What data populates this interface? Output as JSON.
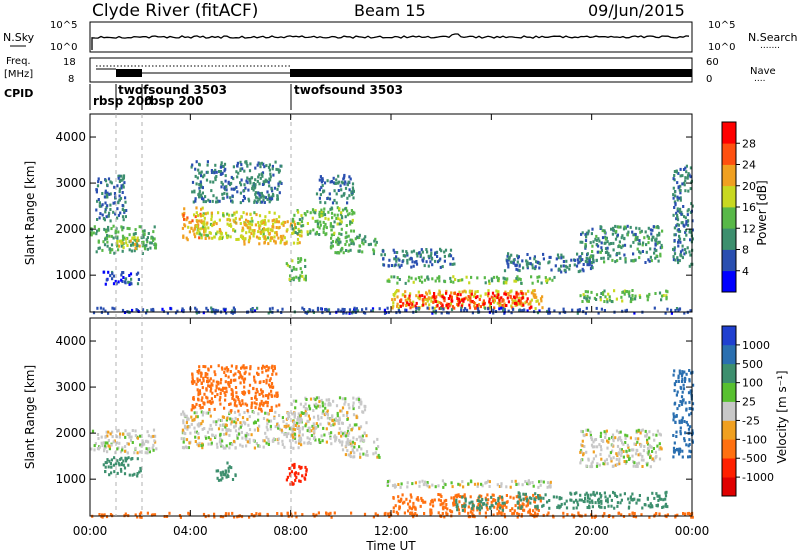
{
  "header": {
    "station": "Clyde River (fitACF)",
    "beam": "Beam 15",
    "date": "09/Jun/2015"
  },
  "nsky_panel": {
    "label": "N.Sky",
    "left_ticks": [
      "10^5",
      "10^0"
    ],
    "right_ticks": [
      "10^5",
      "10^0"
    ],
    "right_label": "N.Search",
    "right_legend": "......."
  },
  "freq_panel": {
    "label_line1": "Freq.",
    "label_line2": "[MHz]",
    "left_ticks": [
      "18",
      "8"
    ],
    "right_ticks": [
      "60",
      "0"
    ],
    "right_label": "Nave",
    "right_legend": "...."
  },
  "cpid_panel": {
    "label": "CPID",
    "programs": [
      {
        "name": "rbsp 200",
        "start_hour": 0.0
      },
      {
        "name": "twofsound 3503",
        "start_hour": 1.0
      },
      {
        "name": "rbsp 200",
        "start_hour": 2.0
      },
      {
        "name": "twofsound 3503",
        "start_hour": 8.0
      }
    ]
  },
  "chart_data": [
    {
      "type": "heatmap",
      "name": "power",
      "ylabel": "Slant Range [km]",
      "ylim": [
        200,
        4500
      ],
      "yticks": [
        "1000",
        "2000",
        "3000",
        "4000"
      ],
      "xlim": [
        0,
        24
      ],
      "colorbar": {
        "label": "Power [dB]",
        "ticks": [
          "4",
          "8",
          "12",
          "16",
          "20",
          "24",
          "28"
        ],
        "colors": [
          "#0000ff",
          "#2a4fb0",
          "#3d8f6e",
          "#58b848",
          "#c8d820",
          "#f0a020",
          "#ff5010",
          "#ff0000"
        ]
      },
      "regions": [
        {
          "t0": 0.0,
          "t1": 2.6,
          "r0": 1500,
          "r1": 2100,
          "value": 12
        },
        {
          "t0": 0.2,
          "t1": 1.4,
          "r0": 2200,
          "r1": 3200,
          "value": 8
        },
        {
          "t0": 0.5,
          "t1": 2.0,
          "r0": 800,
          "r1": 1100,
          "value": 6
        },
        {
          "t0": 1.0,
          "t1": 2.0,
          "r0": 1600,
          "r1": 1900,
          "value": 18
        },
        {
          "t0": 3.6,
          "t1": 4.6,
          "r0": 1800,
          "r1": 2500,
          "value": 22
        },
        {
          "t0": 4.2,
          "t1": 7.5,
          "r0": 1800,
          "r1": 2400,
          "value": 18
        },
        {
          "t0": 6.0,
          "t1": 8.4,
          "r0": 1700,
          "r1": 2200,
          "value": 21
        },
        {
          "t0": 4.0,
          "t1": 7.6,
          "r0": 2600,
          "r1": 3500,
          "value": 9
        },
        {
          "t0": 7.8,
          "t1": 8.6,
          "r0": 900,
          "r1": 1400,
          "value": 14
        },
        {
          "t0": 8.0,
          "t1": 10.5,
          "r0": 1900,
          "r1": 2500,
          "value": 14
        },
        {
          "t0": 9.5,
          "t1": 11.5,
          "r0": 1500,
          "r1": 1900,
          "value": 12
        },
        {
          "t0": 9.0,
          "t1": 10.5,
          "r0": 2600,
          "r1": 3200,
          "value": 8
        },
        {
          "t0": 11.5,
          "t1": 14.5,
          "r0": 1200,
          "r1": 1600,
          "value": 8
        },
        {
          "t0": 11.8,
          "t1": 18.5,
          "r0": 850,
          "r1": 1000,
          "value": 14
        },
        {
          "t0": 12.0,
          "t1": 18.0,
          "r0": 300,
          "r1": 700,
          "value": 20
        },
        {
          "t0": 12.3,
          "t1": 13.3,
          "r0": 300,
          "r1": 600,
          "value": 28
        },
        {
          "t0": 13.6,
          "t1": 17.6,
          "r0": 300,
          "r1": 650,
          "value": 28
        },
        {
          "t0": 16.5,
          "t1": 20.0,
          "r0": 1100,
          "r1": 1500,
          "value": 8
        },
        {
          "t0": 19.5,
          "t1": 23.0,
          "r0": 450,
          "r1": 700,
          "value": 14
        },
        {
          "t0": 19.5,
          "t1": 22.8,
          "r0": 1300,
          "r1": 2100,
          "value": 10
        },
        {
          "t0": 23.2,
          "t1": 24.0,
          "r0": 1200,
          "r1": 3400,
          "value": 9
        },
        {
          "t0": 0.0,
          "t1": 24.0,
          "r0": 200,
          "r1": 320,
          "value": 6
        }
      ]
    },
    {
      "type": "heatmap",
      "name": "velocity",
      "ylabel": "Slant Range [km]",
      "ylim": [
        200,
        4500
      ],
      "yticks": [
        "1000",
        "2000",
        "3000",
        "4000"
      ],
      "xlim": [
        0,
        24
      ],
      "colorbar": {
        "label": "Velocity [m s⁻¹]",
        "ticks": [
          "1000",
          "500",
          "100",
          "25",
          "-25",
          "-100",
          "-500",
          "-1000"
        ],
        "colors": [
          "#2040d0",
          "#2a6fb0",
          "#3d8f6e",
          "#58c030",
          "#c8c8c8",
          "#f0a020",
          "#ff7010",
          "#ff2000",
          "#e00000"
        ]
      },
      "regions": [
        {
          "t0": 0.0,
          "t1": 2.6,
          "r0": 1600,
          "r1": 2100,
          "value": 0
        },
        {
          "t0": 0.5,
          "t1": 2.0,
          "r0": 1100,
          "r1": 1500,
          "value": 150
        },
        {
          "t0": 3.6,
          "t1": 8.4,
          "r0": 1700,
          "r1": 2500,
          "value": 0
        },
        {
          "t0": 4.0,
          "t1": 7.5,
          "r0": 2500,
          "r1": 3500,
          "value": -150
        },
        {
          "t0": 5.0,
          "t1": 5.8,
          "r0": 1000,
          "r1": 1400,
          "value": 150
        },
        {
          "t0": 7.8,
          "t1": 8.6,
          "r0": 900,
          "r1": 1400,
          "value": -600
        },
        {
          "t0": 8.0,
          "t1": 11.0,
          "r0": 1800,
          "r1": 2800,
          "value": 0
        },
        {
          "t0": 10.0,
          "t1": 11.5,
          "r0": 1500,
          "r1": 1900,
          "value": 0
        },
        {
          "t0": 11.8,
          "t1": 18.5,
          "r0": 850,
          "r1": 1000,
          "value": 0
        },
        {
          "t0": 12.0,
          "t1": 18.0,
          "r0": 300,
          "r1": 700,
          "value": -200
        },
        {
          "t0": 14.5,
          "t1": 16.5,
          "r0": 350,
          "r1": 650,
          "value": 150
        },
        {
          "t0": 17.0,
          "t1": 23.0,
          "r0": 400,
          "r1": 750,
          "value": 200
        },
        {
          "t0": 19.5,
          "t1": 22.8,
          "r0": 1300,
          "r1": 2100,
          "value": 0
        },
        {
          "t0": 23.2,
          "t1": 24.0,
          "r0": 1500,
          "r1": 3400,
          "value": 600
        },
        {
          "t0": 0.0,
          "t1": 24.0,
          "r0": 200,
          "r1": 300,
          "value": -200
        }
      ]
    }
  ],
  "xaxis": {
    "ticks": [
      "00:00",
      "04:00",
      "08:00",
      "12:00",
      "16:00",
      "20:00",
      "00:00"
    ],
    "label": "Time UT"
  }
}
